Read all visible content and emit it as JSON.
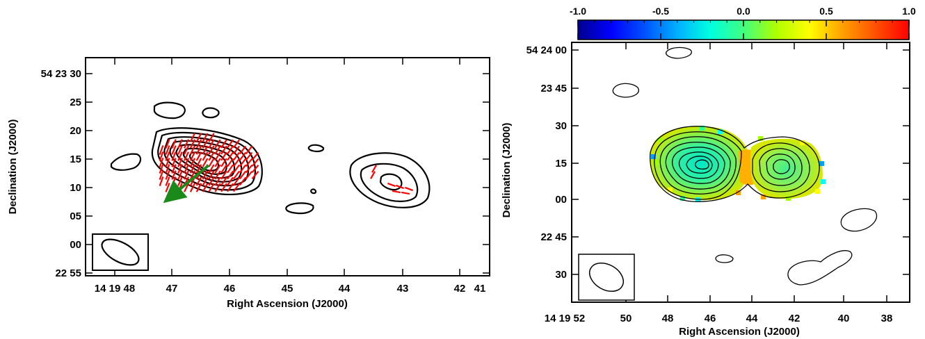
{
  "chart_data": [
    {
      "type": "contour",
      "panel": "left",
      "xlabel": "Right Ascension (J2000)",
      "ylabel": "Declination (J2000)",
      "x_ticks": [
        "14 19 48",
        "47",
        "46",
        "45",
        "44",
        "43",
        "42",
        "41"
      ],
      "y_ticks": [
        "54 23 30",
        "25",
        "20",
        "15",
        "10",
        "05",
        "00",
        "22 55"
      ],
      "x_range_s": [
        48.35,
        40.8
      ],
      "y_range_arcsec": [
        53.5,
        83.5
      ],
      "contour_color": "#000000",
      "vector_color": "#ff0000",
      "arrow_color": "#1a8a1a",
      "beam_label": ""
    },
    {
      "type": "heatmap",
      "panel": "right",
      "xlabel": "Right Ascension (J2000)",
      "ylabel": "Declination (J2000)",
      "x_ticks": [
        "14 19 52",
        "50",
        "48",
        "46",
        "44",
        "42",
        "40",
        "38"
      ],
      "y_ticks": [
        "54 24 00",
        "23 45",
        "30",
        "15",
        "00",
        "22 45",
        "30"
      ],
      "colorbar_ticks": [
        "-1.0",
        "-0.5",
        "0.0",
        "0.5",
        "1.0"
      ],
      "colorbar_range": [
        -1.0,
        1.0
      ],
      "colormap": [
        "#00008f",
        "#0000ff",
        "#00a0ff",
        "#00ffff",
        "#30ff90",
        "#a0ff00",
        "#ffff00",
        "#ffa000",
        "#ff5000",
        "#ff0000"
      ],
      "contour_color": "#000000"
    }
  ]
}
